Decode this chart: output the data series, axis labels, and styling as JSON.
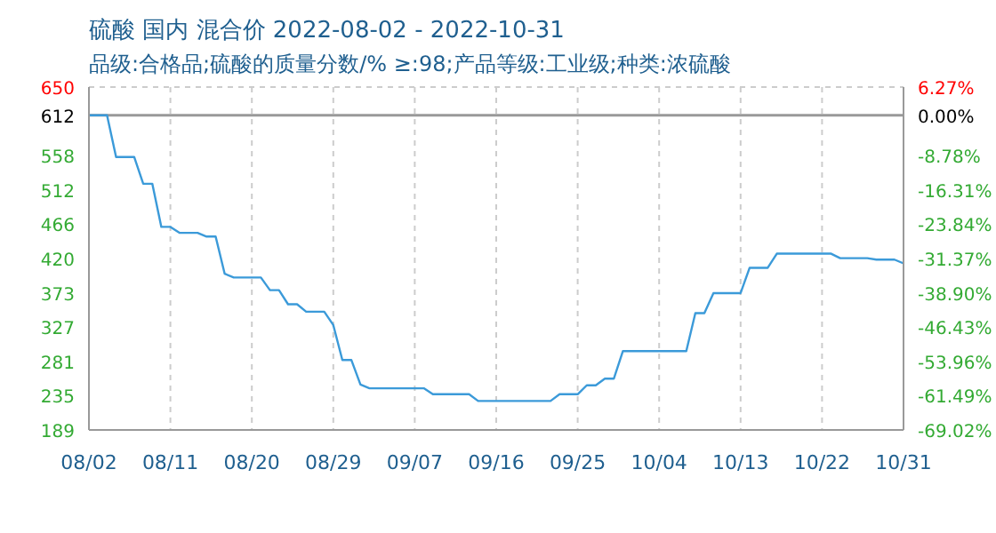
{
  "chart_data": {
    "type": "line",
    "title": "硫酸 国内 混合价 2022-08-02 - 2022-10-31",
    "subtitle": "品级:合格品;硫酸的质量分数/% ≥:98;产品等级:工业级;种类:浓硫酸",
    "x": [
      "2022-08-02",
      "2022-08-04",
      "2022-08-05",
      "2022-08-07",
      "2022-08-08",
      "2022-08-09",
      "2022-08-10",
      "2022-08-11",
      "2022-08-12",
      "2022-08-14",
      "2022-08-15",
      "2022-08-16",
      "2022-08-17",
      "2022-08-18",
      "2022-08-21",
      "2022-08-22",
      "2022-08-23",
      "2022-08-24",
      "2022-08-25",
      "2022-08-26",
      "2022-08-28",
      "2022-08-29",
      "2022-08-30",
      "2022-08-31",
      "2022-09-01",
      "2022-09-02",
      "2022-09-08",
      "2022-09-09",
      "2022-09-13",
      "2022-09-14",
      "2022-09-22",
      "2022-09-23",
      "2022-09-25",
      "2022-09-26",
      "2022-09-27",
      "2022-09-28",
      "2022-09-29",
      "2022-09-30",
      "2022-10-07",
      "2022-10-08",
      "2022-10-09",
      "2022-10-10",
      "2022-10-13",
      "2022-10-14",
      "2022-10-16",
      "2022-10-17",
      "2022-10-23",
      "2022-10-24",
      "2022-10-27",
      "2022-10-28",
      "2022-10-30",
      "2022-10-31"
    ],
    "series": [
      {
        "color": "#3b9ad9",
        "values": [
          612,
          612,
          556,
          556,
          520,
          520,
          462,
          462,
          454,
          454,
          449,
          449,
          399,
          394,
          394,
          377,
          377,
          358,
          358,
          348,
          348,
          330,
          283,
          283,
          250,
          245,
          245,
          237,
          237,
          228,
          228,
          237,
          237,
          249,
          249,
          258,
          258,
          295,
          295,
          346,
          346,
          373,
          373,
          407,
          407,
          426,
          426,
          420,
          420,
          418,
          418,
          413
        ]
      }
    ],
    "xlim": [
      "2022-08-02",
      "2022-10-31"
    ],
    "xticks": [
      {
        "value": "2022-08-02",
        "label": "08/02"
      },
      {
        "value": "2022-08-11",
        "label": "08/11"
      },
      {
        "value": "2022-08-20",
        "label": "08/20"
      },
      {
        "value": "2022-08-29",
        "label": "08/29"
      },
      {
        "value": "2022-09-07",
        "label": "09/07"
      },
      {
        "value": "2022-09-16",
        "label": "09/16"
      },
      {
        "value": "2022-09-25",
        "label": "09/25"
      },
      {
        "value": "2022-10-04",
        "label": "10/04"
      },
      {
        "value": "2022-10-13",
        "label": "10/13"
      },
      {
        "value": "2022-10-22",
        "label": "10/22"
      },
      {
        "value": "2022-10-31",
        "label": "10/31"
      }
    ],
    "ylim": [
      189,
      650
    ],
    "yticks": [
      189,
      235,
      281,
      327,
      373,
      420,
      466,
      512,
      558,
      612,
      650
    ],
    "y2lim": [
      -69.02,
      6.27
    ],
    "y2ticks": [
      {
        "value": -69.02,
        "label": "-69.02%"
      },
      {
        "value": -61.49,
        "label": "-61.49%"
      },
      {
        "value": -53.96,
        "label": "-53.96%"
      },
      {
        "value": -46.43,
        "label": "-46.43%"
      },
      {
        "value": -38.9,
        "label": "-38.90%"
      },
      {
        "value": -31.37,
        "label": "-31.37%"
      },
      {
        "value": -23.84,
        "label": "-23.84%"
      },
      {
        "value": -16.31,
        "label": "-16.31%"
      },
      {
        "value": -8.78,
        "label": "-8.78%"
      },
      {
        "value": 0,
        "label": "0.00%"
      },
      {
        "value": 6.27,
        "label": "6.27%"
      }
    ],
    "ref_lines": [
      {
        "axis": "y",
        "value": 612,
        "color": "#999999",
        "line_style": "solid"
      }
    ],
    "grid": true,
    "marker": "none",
    "line_style": "solid"
  }
}
